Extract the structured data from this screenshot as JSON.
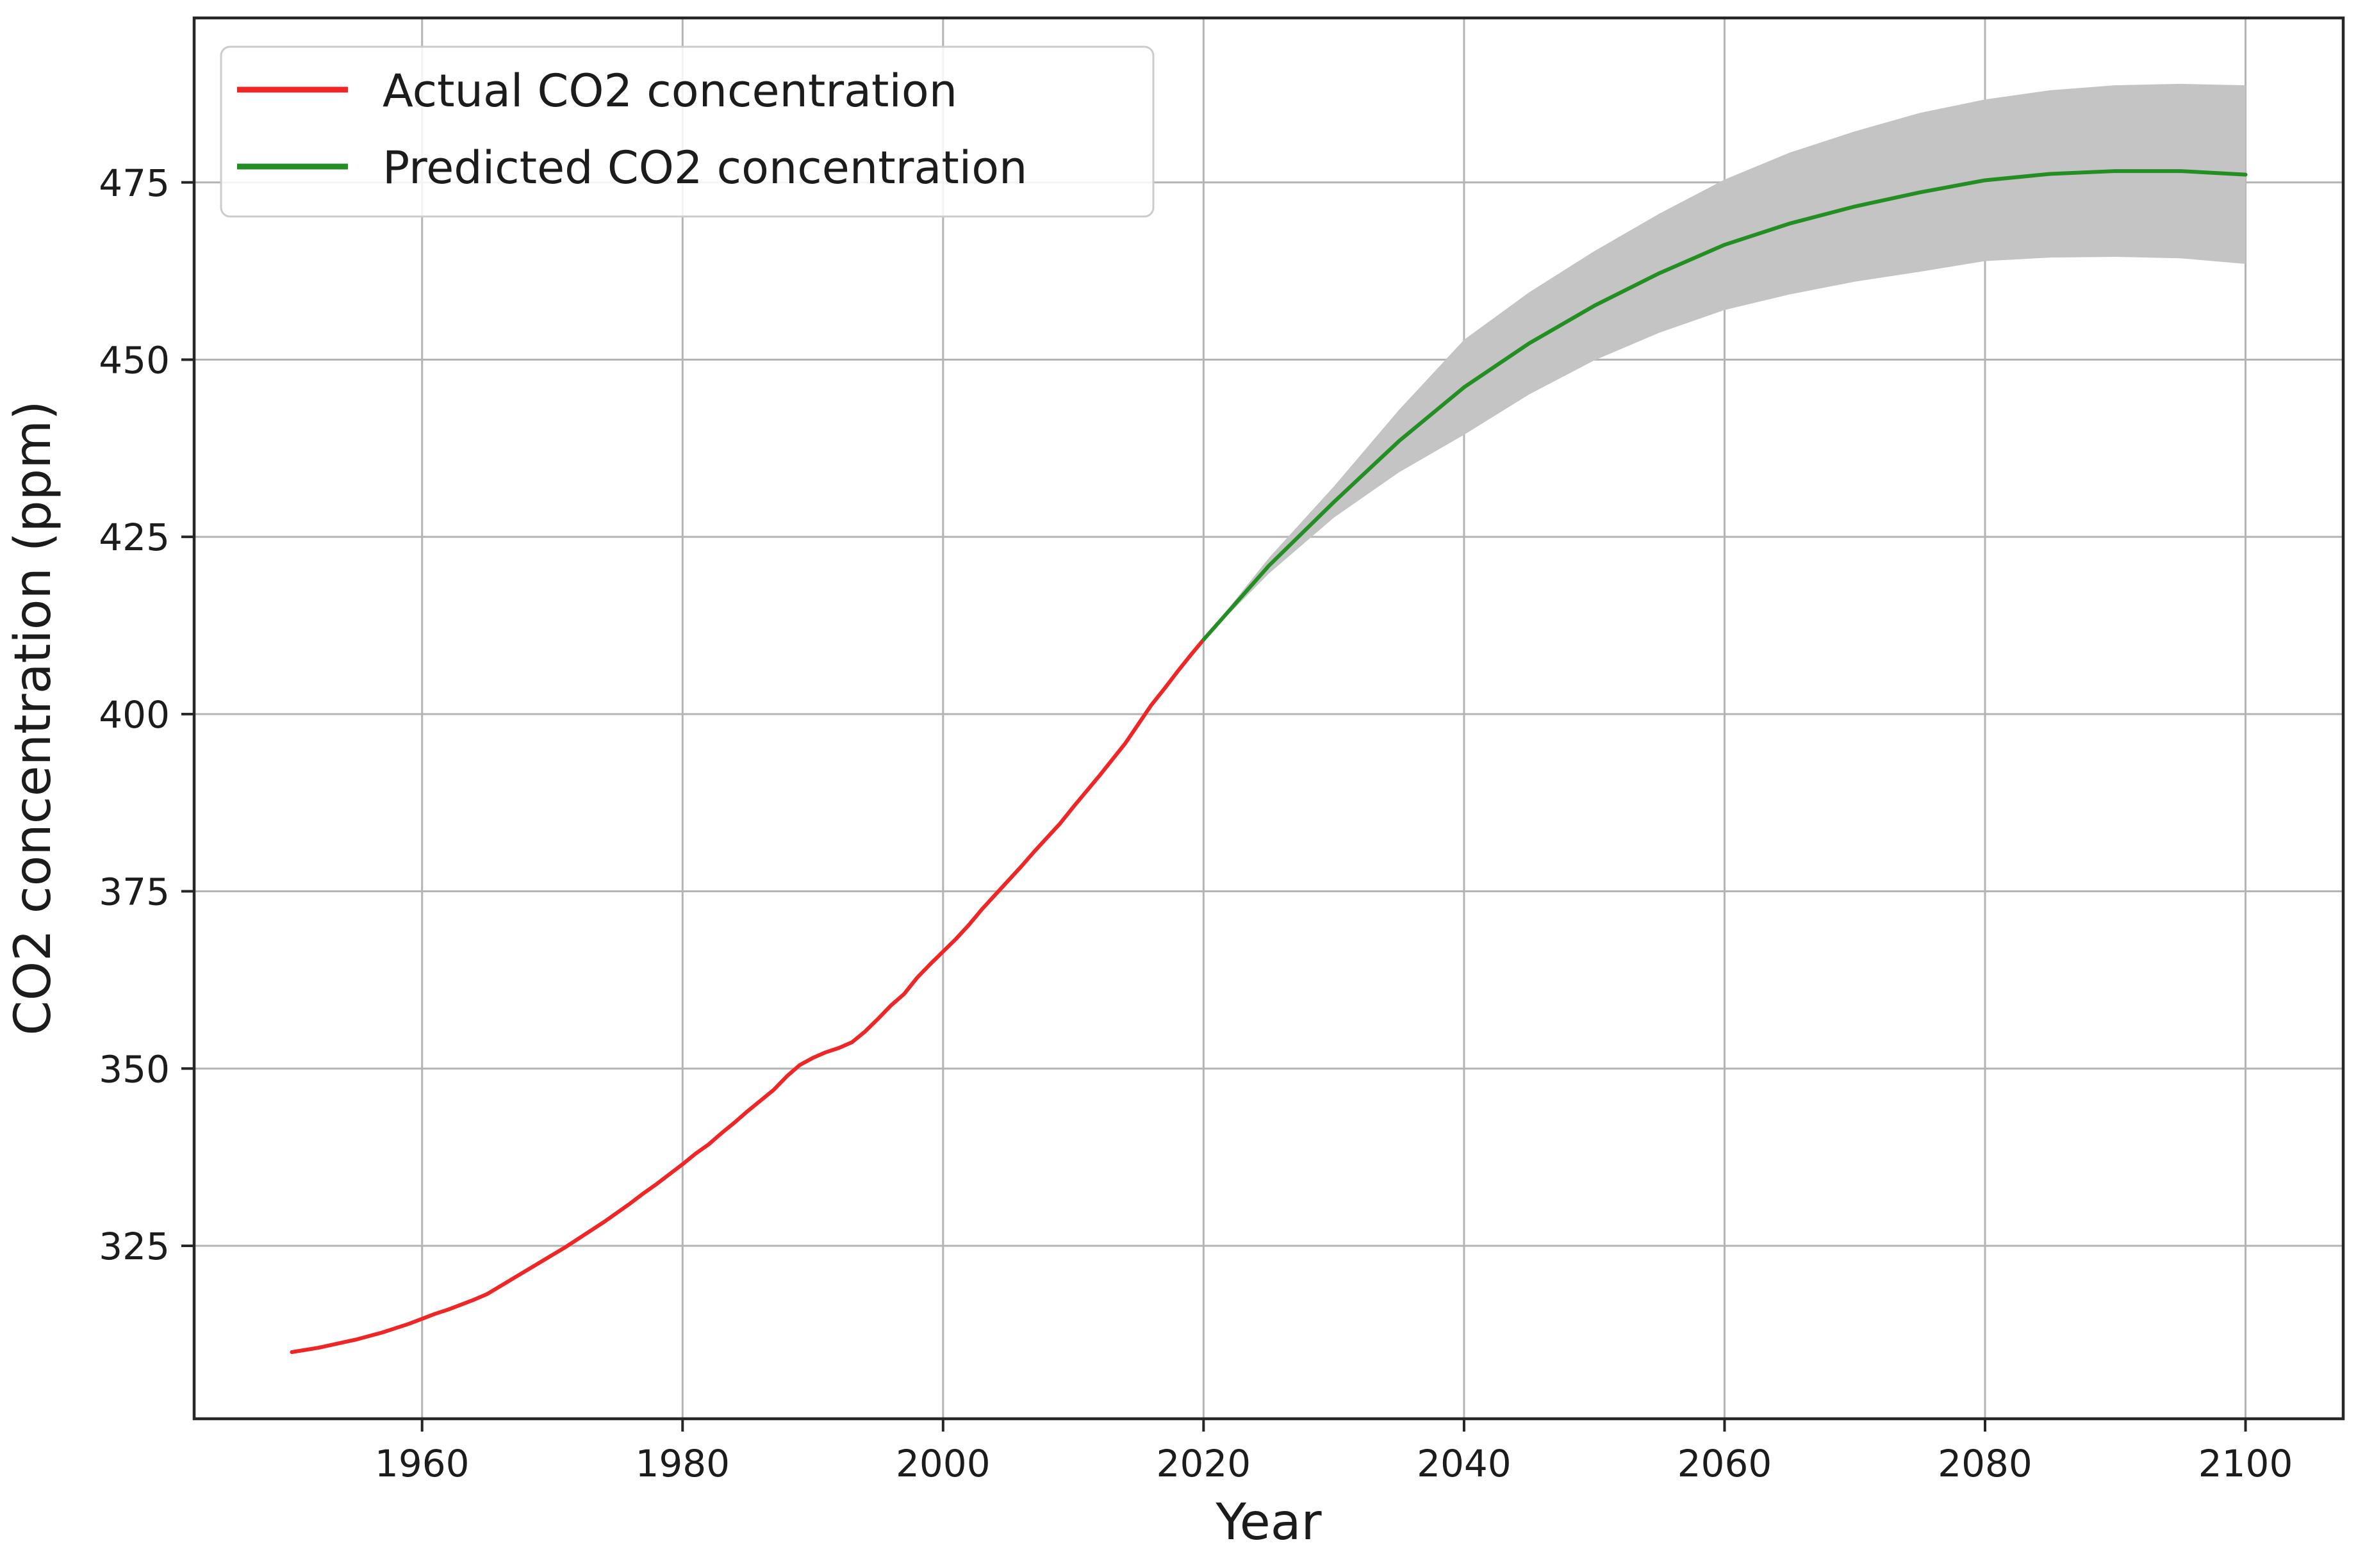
{
  "chart_data": {
    "type": "line",
    "title": "",
    "xlabel": "Year",
    "ylabel": "CO2 concentration (ppm)",
    "xlim": [
      1942.5,
      2107.5
    ],
    "ylim": [
      300.6,
      498.2
    ],
    "x_ticks": [
      1960,
      1980,
      2000,
      2020,
      2040,
      2060,
      2080,
      2100
    ],
    "y_ticks": [
      325,
      350,
      375,
      400,
      425,
      450,
      475
    ],
    "grid": true,
    "grid_color": "#b4b4b4",
    "axis_color": "#262626",
    "legend_position": "upper left",
    "series": [
      {
        "name": "Actual CO2 concentration",
        "color": "#f02525",
        "x": [
          1950,
          1951,
          1952,
          1953,
          1954,
          1955,
          1956,
          1957,
          1958,
          1959,
          1960,
          1961,
          1962,
          1963,
          1964,
          1965,
          1966,
          1967,
          1968,
          1969,
          1970,
          1971,
          1972,
          1973,
          1974,
          1975,
          1976,
          1977,
          1978,
          1979,
          1980,
          1981,
          1982,
          1983,
          1984,
          1985,
          1986,
          1987,
          1988,
          1989,
          1990,
          1991,
          1992,
          1993,
          1994,
          1995,
          1996,
          1997,
          1998,
          1999,
          2000,
          2001,
          2002,
          2003,
          2004,
          2005,
          2006,
          2007,
          2008,
          2009,
          2010,
          2011,
          2012,
          2013,
          2014,
          2015,
          2016,
          2017,
          2018,
          2019,
          2020
        ],
        "y": [
          310.0,
          310.3,
          310.6,
          311.0,
          311.4,
          311.8,
          312.3,
          312.8,
          313.4,
          314.0,
          314.7,
          315.4,
          316.0,
          316.7,
          317.4,
          318.2,
          319.3,
          320.4,
          321.5,
          322.6,
          323.7,
          324.8,
          326.0,
          327.2,
          328.4,
          329.7,
          331.0,
          332.4,
          333.7,
          335.1,
          336.5,
          338.0,
          339.3,
          340.9,
          342.4,
          344.0,
          345.5,
          347.0,
          348.9,
          350.5,
          351.5,
          352.3,
          352.9,
          353.7,
          355.2,
          357.0,
          358.9,
          360.5,
          362.8,
          364.7,
          366.5,
          368.3,
          370.3,
          372.5,
          374.5,
          376.5,
          378.5,
          380.6,
          382.6,
          384.6,
          386.9,
          389.1,
          391.3,
          393.6,
          395.9,
          398.6,
          401.3,
          403.6,
          406.0,
          408.3,
          410.5
        ]
      },
      {
        "name": "Predicted CO2 concentration",
        "color": "#238f23",
        "x": [
          2020,
          2025,
          2030,
          2035,
          2040,
          2045,
          2050,
          2055,
          2060,
          2065,
          2070,
          2075,
          2080,
          2085,
          2090,
          2095,
          2100
        ],
        "y": [
          410.5,
          420.9,
          429.9,
          438.5,
          446.1,
          452.3,
          457.6,
          462.2,
          466.2,
          469.2,
          471.6,
          473.6,
          475.3,
          476.2,
          476.6,
          476.6,
          476.1
        ]
      }
    ],
    "band": {
      "name": "prediction confidence interval",
      "color": "#c4c4c4",
      "x": [
        2020,
        2025,
        2030,
        2035,
        2040,
        2045,
        2050,
        2055,
        2060,
        2065,
        2070,
        2075,
        2080,
        2085,
        2090,
        2095,
        2100
      ],
      "upper": [
        410.5,
        422.0,
        432.1,
        442.9,
        452.8,
        459.5,
        465.3,
        470.6,
        475.4,
        479.2,
        482.2,
        484.8,
        486.7,
        488.0,
        488.7,
        488.9,
        488.7
      ],
      "lower": [
        410.5,
        419.8,
        427.7,
        434.1,
        439.4,
        445.1,
        449.9,
        453.8,
        457.0,
        459.2,
        461.0,
        462.4,
        463.9,
        464.4,
        464.5,
        464.3,
        463.5
      ]
    },
    "legend": {
      "entries": [
        "Actual CO2 concentration",
        "Predicted CO2 concentration"
      ]
    }
  }
}
